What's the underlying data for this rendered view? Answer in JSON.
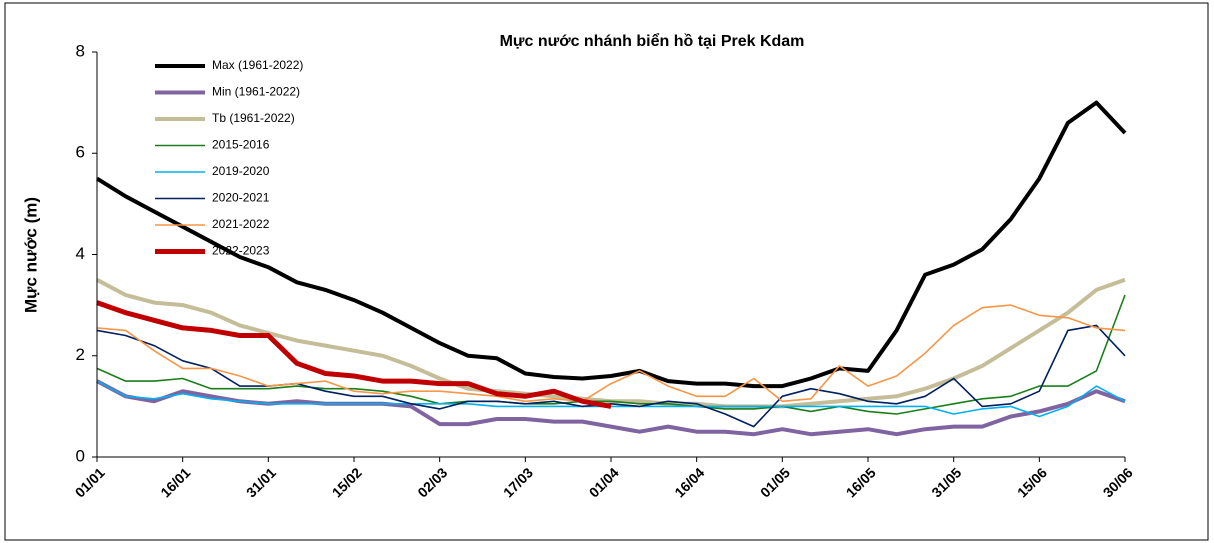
{
  "chart_data": {
    "type": "line",
    "title": "Mực nước nhánh biển hồ tại Prek Kdam",
    "y_label": "Mực nước (m)",
    "categories": [
      "01/01",
      null,
      null,
      "16/01",
      null,
      null,
      "31/01",
      null,
      null,
      "15/02",
      null,
      null,
      "02/03",
      null,
      null,
      "17/03",
      null,
      null,
      "01/04",
      null,
      null,
      "16/04",
      null,
      null,
      "01/05",
      null,
      null,
      "16/05",
      null,
      null,
      "31/05",
      null,
      null,
      "15/06",
      null,
      null,
      "30/06"
    ],
    "ylim": [
      0,
      8
    ],
    "yticks": [
      0,
      2,
      4,
      6,
      8
    ],
    "grid": false,
    "legend": "upper left",
    "series": [
      {
        "name": "Max (1961-2022)",
        "color": "#000000",
        "values": [
          5.5,
          5.15,
          4.85,
          4.55,
          4.25,
          3.95,
          3.75,
          3.45,
          3.3,
          3.1,
          2.85,
          2.55,
          2.25,
          2.0,
          1.95,
          1.65,
          1.58,
          1.55,
          1.6,
          1.7,
          1.5,
          1.45,
          1.45,
          1.4,
          1.4,
          1.55,
          1.75,
          1.7,
          2.5,
          3.6,
          3.8,
          4.1,
          4.7,
          5.5,
          6.6,
          7.0,
          6.4
        ]
      },
      {
        "name": "Min (1961-2022)",
        "color": "#8064a2",
        "values": [
          1.5,
          1.2,
          1.1,
          1.3,
          1.2,
          1.1,
          1.05,
          1.1,
          1.05,
          1.05,
          1.05,
          1.0,
          0.65,
          0.65,
          0.75,
          0.75,
          0.7,
          0.7,
          0.6,
          0.5,
          0.6,
          0.5,
          0.5,
          0.45,
          0.55,
          0.45,
          0.5,
          0.55,
          0.45,
          0.55,
          0.6,
          0.6,
          0.8,
          0.9,
          1.05,
          1.3,
          1.1
        ]
      },
      {
        "name": "Tb (1961-2022)",
        "color": "#c4bd97",
        "values": [
          3.5,
          3.2,
          3.05,
          3.0,
          2.85,
          2.6,
          2.45,
          2.3,
          2.2,
          2.1,
          2.0,
          1.8,
          1.55,
          1.35,
          1.3,
          1.25,
          1.2,
          1.15,
          1.1,
          1.1,
          1.05,
          1.05,
          1.0,
          1.0,
          1.0,
          1.05,
          1.1,
          1.15,
          1.2,
          1.35,
          1.55,
          1.8,
          2.15,
          2.5,
          2.85,
          3.3,
          3.5
        ]
      },
      {
        "name": "2015-2016",
        "color": "#1a7f1a",
        "values": [
          1.75,
          1.5,
          1.5,
          1.55,
          1.35,
          1.35,
          1.35,
          1.4,
          1.35,
          1.35,
          1.3,
          1.2,
          1.05,
          1.1,
          1.1,
          1.05,
          1.05,
          1.1,
          1.1,
          1.05,
          1.05,
          1.0,
          0.95,
          0.95,
          1.0,
          0.9,
          1.0,
          0.9,
          0.85,
          0.95,
          1.05,
          1.15,
          1.2,
          1.4,
          1.4,
          1.7,
          3.2
        ]
      },
      {
        "name": "2019-2020",
        "color": "#00b0f0",
        "values": [
          1.5,
          1.2,
          1.15,
          1.25,
          1.15,
          1.1,
          1.05,
          1.05,
          1.05,
          1.05,
          1.05,
          1.05,
          1.05,
          1.05,
          1.0,
          1.0,
          1.0,
          1.0,
          1.0,
          1.0,
          1.0,
          1.0,
          1.0,
          1.0,
          1.0,
          1.0,
          1.0,
          1.0,
          1.0,
          1.0,
          0.85,
          0.95,
          1.0,
          0.8,
          1.0,
          1.4,
          1.1
        ]
      },
      {
        "name": "2020-2021",
        "color": "#002060",
        "values": [
          2.5,
          2.4,
          2.2,
          1.9,
          1.75,
          1.4,
          1.4,
          1.45,
          1.3,
          1.2,
          1.2,
          1.05,
          0.95,
          1.1,
          1.1,
          1.05,
          1.1,
          1.0,
          1.05,
          1.0,
          1.1,
          1.05,
          0.85,
          0.6,
          1.2,
          1.35,
          1.25,
          1.1,
          1.05,
          1.2,
          1.55,
          1.0,
          1.05,
          1.3,
          2.5,
          2.6,
          2.0
        ]
      },
      {
        "name": "2021-2022",
        "color": "#f79646",
        "values": [
          2.55,
          2.5,
          2.1,
          1.75,
          1.75,
          1.6,
          1.4,
          1.45,
          1.5,
          1.3,
          1.25,
          1.3,
          1.3,
          1.25,
          1.2,
          1.1,
          1.15,
          1.1,
          1.45,
          1.7,
          1.4,
          1.2,
          1.2,
          1.55,
          1.1,
          1.15,
          1.8,
          1.4,
          1.6,
          2.05,
          2.6,
          2.95,
          3.0,
          2.8,
          2.75,
          2.55,
          2.5
        ]
      },
      {
        "name": "2022-2023",
        "color": "#c00000",
        "values": [
          3.05,
          2.85,
          2.7,
          2.55,
          2.5,
          2.4,
          2.4,
          1.85,
          1.65,
          1.6,
          1.5,
          1.5,
          1.45,
          1.45,
          1.25,
          1.2,
          1.3,
          1.1,
          1.0,
          null,
          null,
          null,
          null,
          null,
          null,
          null,
          null,
          null,
          null,
          null,
          null,
          null,
          null,
          null,
          null,
          null,
          null
        ]
      }
    ]
  }
}
